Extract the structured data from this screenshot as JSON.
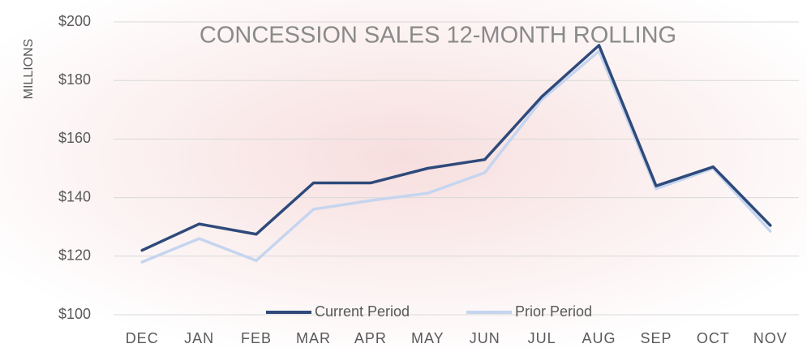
{
  "chart_data": {
    "type": "line",
    "title": "CONCESSION SALES 12-MONTH ROLLING",
    "y_label": "MILLIONS",
    "categories": [
      "DEC",
      "JAN",
      "FEB",
      "MAR",
      "APR",
      "MAY",
      "JUN",
      "JUL",
      "AUG",
      "SEP",
      "OCT",
      "NOV"
    ],
    "series": [
      {
        "name": "Current Period",
        "color": "#2e4a7a",
        "values": [
          122,
          131,
          127.5,
          145,
          145,
          150,
          153,
          174.5,
          192,
          144,
          150.5,
          130.5
        ]
      },
      {
        "name": "Prior Period",
        "color": "#c5d5ef",
        "values": [
          118,
          126,
          118.5,
          136,
          139,
          141.5,
          148.5,
          173.5,
          190,
          143,
          150,
          128.5
        ]
      }
    ],
    "ylim": [
      100,
      200
    ],
    "yticks": [
      {
        "value": 100,
        "label": "$100"
      },
      {
        "value": 120,
        "label": "$120"
      },
      {
        "value": 140,
        "label": "$140"
      },
      {
        "value": 160,
        "label": "$160"
      },
      {
        "value": 180,
        "label": "$180"
      },
      {
        "value": 200,
        "label": "$200"
      }
    ],
    "grid": true,
    "legend": "bottom"
  }
}
